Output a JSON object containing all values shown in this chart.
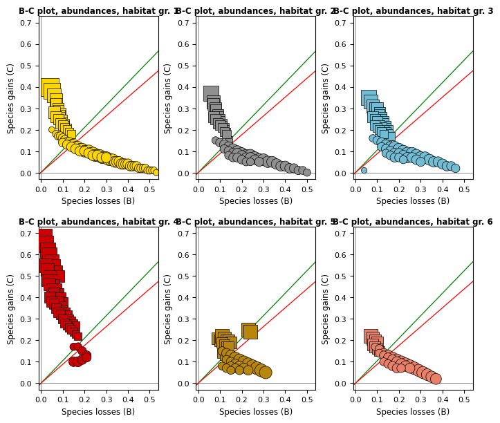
{
  "titles": [
    "B-C plot, abundances, habitat gr. 1",
    "B-C plot, abundances, habitat gr. 2",
    "B-C plot, abundances, habitat gr. 3",
    "B-C plot, abundances, habitat gr. 4",
    "B-C plot, abundances, habitat gr. 5",
    "B-C plot, abundances, habitat gr. 6"
  ],
  "colors": [
    "#FFD700",
    "#909090",
    "#72BCD4",
    "#CC0000",
    "#B8860B",
    "#E8806A"
  ],
  "xlabel": "Species losses (B)",
  "ylabel": "Species gains (C)",
  "xlim": [
    -0.01,
    0.54
  ],
  "ylim": [
    -0.03,
    0.73
  ],
  "xticks": [
    0.0,
    0.1,
    0.2,
    0.3,
    0.4,
    0.5
  ],
  "yticks": [
    0.0,
    0.1,
    0.2,
    0.3,
    0.4,
    0.5,
    0.6,
    0.7
  ],
  "green_slope": 1.05,
  "red_slope": 0.88,
  "groups": {
    "1": {
      "squares": {
        "x": [
          0.04,
          0.05,
          0.06,
          0.07,
          0.07,
          0.08,
          0.08,
          0.09,
          0.09,
          0.09,
          0.1,
          0.1,
          0.1,
          0.11,
          0.11,
          0.11,
          0.12,
          0.12,
          0.12,
          0.13,
          0.13,
          0.06,
          0.07,
          0.08,
          0.09,
          0.1,
          0.11,
          0.12,
          0.13,
          0.14
        ],
        "y": [
          0.4,
          0.38,
          0.36,
          0.34,
          0.32,
          0.3,
          0.29,
          0.28,
          0.27,
          0.26,
          0.25,
          0.24,
          0.23,
          0.23,
          0.22,
          0.21,
          0.21,
          0.2,
          0.19,
          0.19,
          0.18,
          0.28,
          0.26,
          0.25,
          0.23,
          0.22,
          0.21,
          0.2,
          0.19,
          0.18
        ],
        "sizes": [
          350,
          280,
          200,
          160,
          140,
          130,
          120,
          110,
          100,
          95,
          90,
          85,
          80,
          80,
          75,
          70,
          70,
          65,
          60,
          60,
          55,
          150,
          130,
          120,
          110,
          100,
          90,
          85,
          80,
          75
        ]
      },
      "circles": {
        "x": [
          0.05,
          0.07,
          0.08,
          0.09,
          0.1,
          0.11,
          0.12,
          0.13,
          0.14,
          0.15,
          0.16,
          0.17,
          0.18,
          0.19,
          0.2,
          0.21,
          0.22,
          0.23,
          0.24,
          0.25,
          0.26,
          0.27,
          0.28,
          0.29,
          0.3,
          0.31,
          0.32,
          0.33,
          0.34,
          0.35,
          0.36,
          0.37,
          0.38,
          0.39,
          0.4,
          0.41,
          0.42,
          0.43,
          0.44,
          0.45,
          0.46,
          0.47,
          0.48,
          0.49,
          0.5,
          0.51,
          0.52,
          0.53,
          0.1,
          0.12,
          0.14,
          0.16,
          0.18,
          0.2,
          0.22,
          0.24,
          0.26,
          0.28,
          0.3
        ],
        "y": [
          0.2,
          0.18,
          0.17,
          0.17,
          0.16,
          0.15,
          0.14,
          0.14,
          0.13,
          0.13,
          0.12,
          0.12,
          0.11,
          0.11,
          0.1,
          0.1,
          0.1,
          0.09,
          0.09,
          0.08,
          0.08,
          0.08,
          0.07,
          0.07,
          0.07,
          0.06,
          0.06,
          0.06,
          0.05,
          0.05,
          0.05,
          0.04,
          0.04,
          0.04,
          0.04,
          0.03,
          0.03,
          0.03,
          0.03,
          0.02,
          0.02,
          0.02,
          0.02,
          0.01,
          0.01,
          0.01,
          0.01,
          0.0,
          0.14,
          0.13,
          0.12,
          0.11,
          0.1,
          0.1,
          0.09,
          0.08,
          0.08,
          0.07,
          0.07
        ],
        "sizes": [
          40,
          60,
          70,
          80,
          90,
          100,
          110,
          110,
          120,
          120,
          130,
          130,
          140,
          140,
          150,
          150,
          160,
          150,
          160,
          160,
          160,
          150,
          150,
          160,
          150,
          140,
          150,
          140,
          130,
          130,
          120,
          120,
          120,
          110,
          110,
          100,
          100,
          90,
          90,
          80,
          80,
          70,
          70,
          60,
          60,
          50,
          50,
          40,
          80,
          90,
          100,
          110,
          110,
          100,
          110,
          120,
          120,
          110,
          110
        ]
      }
    },
    "2": {
      "squares": {
        "x": [
          0.06,
          0.07,
          0.07,
          0.08,
          0.08,
          0.09,
          0.09,
          0.1,
          0.1,
          0.11,
          0.11,
          0.12,
          0.12,
          0.13,
          0.14,
          0.07,
          0.08,
          0.09,
          0.1,
          0.11,
          0.12,
          0.13
        ],
        "y": [
          0.37,
          0.33,
          0.32,
          0.3,
          0.29,
          0.27,
          0.26,
          0.25,
          0.24,
          0.23,
          0.22,
          0.21,
          0.2,
          0.19,
          0.15,
          0.26,
          0.25,
          0.23,
          0.22,
          0.21,
          0.19,
          0.18
        ],
        "sizes": [
          250,
          180,
          160,
          150,
          140,
          130,
          120,
          110,
          100,
          95,
          90,
          85,
          80,
          75,
          70,
          130,
          120,
          110,
          100,
          90,
          85,
          80
        ]
      },
      "circles": {
        "x": [
          0.08,
          0.1,
          0.12,
          0.14,
          0.16,
          0.18,
          0.2,
          0.22,
          0.24,
          0.26,
          0.28,
          0.3,
          0.32,
          0.34,
          0.36,
          0.38,
          0.4,
          0.42,
          0.44,
          0.46,
          0.48,
          0.5,
          0.12,
          0.14,
          0.16,
          0.18,
          0.2,
          0.22,
          0.24,
          0.26,
          0.28,
          0.14,
          0.16,
          0.18,
          0.2,
          0.22,
          0.24
        ],
        "y": [
          0.15,
          0.14,
          0.13,
          0.12,
          0.11,
          0.1,
          0.09,
          0.08,
          0.08,
          0.07,
          0.06,
          0.06,
          0.05,
          0.05,
          0.04,
          0.03,
          0.03,
          0.02,
          0.02,
          0.01,
          0.01,
          0.0,
          0.11,
          0.1,
          0.09,
          0.09,
          0.08,
          0.07,
          0.07,
          0.06,
          0.05,
          0.08,
          0.07,
          0.07,
          0.06,
          0.05,
          0.05
        ],
        "sizes": [
          60,
          80,
          100,
          110,
          120,
          130,
          140,
          150,
          160,
          150,
          160,
          150,
          140,
          130,
          120,
          110,
          110,
          100,
          90,
          80,
          70,
          60,
          80,
          90,
          100,
          110,
          100,
          100,
          110,
          100,
          90,
          70,
          80,
          90,
          80,
          70,
          65
        ]
      }
    },
    "3": {
      "squares": {
        "x": [
          0.06,
          0.07,
          0.08,
          0.09,
          0.1,
          0.1,
          0.11,
          0.11,
          0.12,
          0.12,
          0.13,
          0.13,
          0.14,
          0.14,
          0.15,
          0.08,
          0.09,
          0.1,
          0.11,
          0.12,
          0.13,
          0.14,
          0.15,
          0.16,
          0.09,
          0.1,
          0.11,
          0.12,
          0.13
        ],
        "y": [
          0.35,
          0.33,
          0.31,
          0.3,
          0.28,
          0.3,
          0.28,
          0.27,
          0.26,
          0.25,
          0.24,
          0.23,
          0.22,
          0.21,
          0.2,
          0.26,
          0.25,
          0.24,
          0.22,
          0.21,
          0.2,
          0.19,
          0.18,
          0.17,
          0.22,
          0.21,
          0.2,
          0.19,
          0.18
        ],
        "sizes": [
          250,
          200,
          180,
          160,
          150,
          140,
          130,
          120,
          115,
          110,
          105,
          100,
          95,
          90,
          85,
          130,
          120,
          115,
          110,
          105,
          100,
          95,
          90,
          85,
          100,
          95,
          90,
          85,
          80
        ]
      },
      "circles": {
        "x": [
          0.08,
          0.1,
          0.12,
          0.14,
          0.16,
          0.18,
          0.2,
          0.22,
          0.24,
          0.26,
          0.28,
          0.3,
          0.32,
          0.34,
          0.36,
          0.38,
          0.4,
          0.42,
          0.44,
          0.46,
          0.12,
          0.14,
          0.16,
          0.18,
          0.2,
          0.22,
          0.24,
          0.26,
          0.28,
          0.3,
          0.14,
          0.16,
          0.18,
          0.2,
          0.22,
          0.04
        ],
        "y": [
          0.16,
          0.15,
          0.14,
          0.13,
          0.12,
          0.12,
          0.11,
          0.1,
          0.09,
          0.09,
          0.08,
          0.07,
          0.07,
          0.06,
          0.05,
          0.05,
          0.04,
          0.03,
          0.03,
          0.02,
          0.12,
          0.11,
          0.1,
          0.09,
          0.09,
          0.08,
          0.07,
          0.07,
          0.06,
          0.05,
          0.09,
          0.08,
          0.07,
          0.07,
          0.06,
          0.01
        ],
        "sizes": [
          60,
          80,
          100,
          110,
          120,
          130,
          140,
          150,
          160,
          150,
          160,
          150,
          140,
          130,
          120,
          110,
          110,
          100,
          90,
          80,
          80,
          90,
          100,
          110,
          100,
          110,
          120,
          110,
          100,
          90,
          70,
          80,
          90,
          80,
          70,
          35
        ]
      }
    },
    "4": {
      "squares": {
        "x": [
          0.01,
          0.02,
          0.03,
          0.04,
          0.05,
          0.06,
          0.07,
          0.08,
          0.02,
          0.03,
          0.04,
          0.05,
          0.06,
          0.07,
          0.08,
          0.09,
          0.1,
          0.03,
          0.04,
          0.05,
          0.06,
          0.07,
          0.08,
          0.09,
          0.1,
          0.11,
          0.12,
          0.13,
          0.14,
          0.15,
          0.16,
          0.04,
          0.05,
          0.06,
          0.07,
          0.08,
          0.09,
          0.1,
          0.11,
          0.12,
          0.13,
          0.14,
          0.15,
          0.16,
          0.17
        ],
        "y": [
          0.68,
          0.65,
          0.62,
          0.6,
          0.57,
          0.55,
          0.52,
          0.5,
          0.55,
          0.53,
          0.5,
          0.48,
          0.46,
          0.44,
          0.42,
          0.4,
          0.38,
          0.48,
          0.46,
          0.44,
          0.42,
          0.4,
          0.38,
          0.36,
          0.34,
          0.33,
          0.32,
          0.3,
          0.29,
          0.28,
          0.27,
          0.4,
          0.38,
          0.37,
          0.35,
          0.33,
          0.32,
          0.3,
          0.28,
          0.27,
          0.26,
          0.25,
          0.24,
          0.23,
          0.22
        ],
        "sizes": [
          350,
          300,
          250,
          220,
          200,
          180,
          160,
          150,
          200,
          180,
          160,
          150,
          140,
          130,
          120,
          110,
          100,
          160,
          150,
          140,
          130,
          120,
          115,
          110,
          100,
          95,
          90,
          85,
          80,
          75,
          70,
          130,
          120,
          115,
          110,
          105,
          100,
          95,
          90,
          85,
          80,
          75,
          70,
          65,
          60
        ]
      },
      "circles": {
        "x": [
          0.15,
          0.17,
          0.19,
          0.21,
          0.15,
          0.17,
          0.19,
          0.21
        ],
        "y": [
          0.17,
          0.17,
          0.15,
          0.13,
          0.1,
          0.1,
          0.11,
          0.12
        ],
        "sizes": [
          60,
          70,
          80,
          90,
          100,
          110,
          100,
          90
        ]
      }
    },
    "5": {
      "squares": {
        "x": [
          0.09,
          0.1,
          0.11,
          0.12,
          0.13,
          0.14,
          0.15,
          0.23,
          0.24,
          0.11,
          0.12,
          0.13,
          0.14,
          0.11,
          0.12
        ],
        "y": [
          0.21,
          0.2,
          0.22,
          0.21,
          0.2,
          0.2,
          0.19,
          0.25,
          0.24,
          0.19,
          0.18,
          0.17,
          0.17,
          0.14,
          0.13
        ],
        "sizes": [
          150,
          140,
          200,
          180,
          160,
          150,
          140,
          220,
          200,
          130,
          120,
          115,
          110,
          100,
          95
        ]
      },
      "circles": {
        "x": [
          0.11,
          0.13,
          0.15,
          0.17,
          0.19,
          0.21,
          0.23,
          0.25,
          0.27,
          0.29,
          0.31,
          0.13,
          0.15,
          0.17,
          0.19,
          0.21,
          0.23,
          0.15,
          0.17,
          0.19,
          0.11,
          0.13,
          0.15
        ],
        "y": [
          0.15,
          0.14,
          0.13,
          0.12,
          0.11,
          0.1,
          0.09,
          0.08,
          0.07,
          0.06,
          0.05,
          0.11,
          0.1,
          0.09,
          0.08,
          0.07,
          0.06,
          0.08,
          0.07,
          0.06,
          0.08,
          0.07,
          0.06
        ],
        "sizes": [
          80,
          100,
          120,
          130,
          140,
          150,
          160,
          170,
          180,
          180,
          170,
          80,
          90,
          100,
          110,
          110,
          100,
          80,
          90,
          80,
          70,
          80,
          70
        ]
      }
    },
    "6": {
      "squares": {
        "x": [
          0.07,
          0.08,
          0.09,
          0.1,
          0.08,
          0.09,
          0.1,
          0.11
        ],
        "y": [
          0.22,
          0.21,
          0.2,
          0.19,
          0.18,
          0.17,
          0.16,
          0.15
        ],
        "sizes": [
          200,
          180,
          160,
          140,
          140,
          130,
          120,
          110
        ]
      },
      "circles": {
        "x": [
          0.09,
          0.11,
          0.13,
          0.15,
          0.17,
          0.19,
          0.21,
          0.23,
          0.25,
          0.27,
          0.29,
          0.31,
          0.33,
          0.35,
          0.37,
          0.11,
          0.13,
          0.15,
          0.17,
          0.19,
          0.21,
          0.23,
          0.25,
          0.13,
          0.15,
          0.17,
          0.19,
          0.21
        ],
        "y": [
          0.17,
          0.16,
          0.14,
          0.13,
          0.12,
          0.11,
          0.1,
          0.09,
          0.08,
          0.07,
          0.06,
          0.05,
          0.04,
          0.03,
          0.02,
          0.14,
          0.13,
          0.12,
          0.11,
          0.1,
          0.09,
          0.08,
          0.07,
          0.1,
          0.09,
          0.08,
          0.07,
          0.07
        ],
        "sizes": [
          60,
          80,
          100,
          120,
          130,
          140,
          150,
          160,
          170,
          170,
          160,
          160,
          150,
          140,
          130,
          70,
          80,
          90,
          100,
          110,
          120,
          120,
          110,
          70,
          80,
          90,
          90,
          80
        ]
      }
    }
  }
}
